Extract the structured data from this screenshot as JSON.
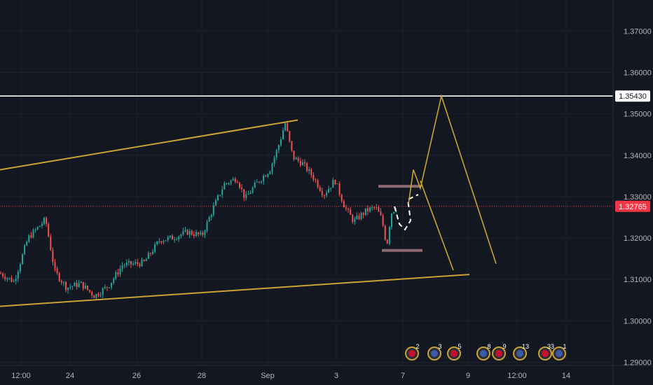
{
  "chart_data": {
    "type": "candlestick",
    "y_axis": {
      "ylim": [
        1.2845,
        1.3775
      ],
      "ticks": [
        "1.37000",
        "1.36000",
        "1.35000",
        "1.34000",
        "1.33000",
        "1.32000",
        "1.31000",
        "1.30000",
        "1.29000"
      ]
    },
    "x_axis": {
      "ticks": [
        "12:00",
        "24",
        "26",
        "28",
        "Sep",
        "3",
        "7",
        "9",
        "12:00",
        "14"
      ]
    },
    "resistance_level": {
      "value": 1.3543,
      "label": "1.35430"
    },
    "last_price": {
      "value": 1.32765,
      "label": "1.32765"
    },
    "channel": {
      "upper": [
        [
          0,
          1.3365
        ],
        [
          1.0,
          1.3485
        ]
      ],
      "lower": [
        [
          0,
          1.3035
        ],
        [
          1.0,
          1.3112
        ]
      ]
    },
    "consolidation_box": {
      "top": 1.3325,
      "bottom": 1.317
    },
    "projection": [
      1.3282,
      1.3365,
      1.332,
      1.3543,
      1.3138
    ],
    "projection_alt": [
      1.3338,
      1.3122
    ],
    "series_range": {
      "start": 1.3115,
      "peak": 1.3478,
      "end": 1.3276
    },
    "event_badges": [
      "2",
      "3",
      "5",
      "8",
      "9",
      "13",
      "33",
      "1"
    ]
  },
  "colors": {
    "background": "#131722",
    "grid": "#1e222d",
    "up": "#26a69a",
    "down": "#ef5350",
    "channel": "#c9a233",
    "resistance": "#ffffff",
    "last_price": "#f23645",
    "box": "#8c6a75"
  }
}
